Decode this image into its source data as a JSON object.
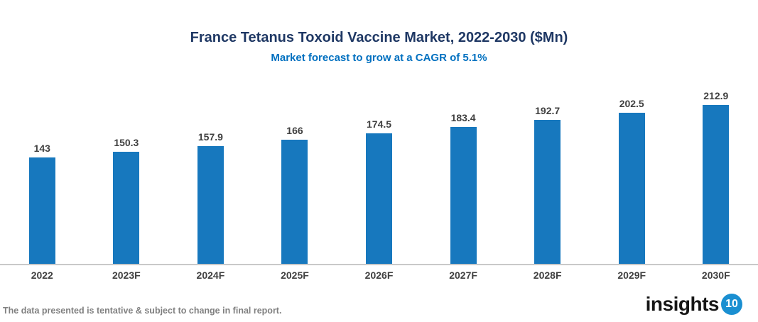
{
  "chart_data": {
    "type": "bar",
    "title": "France Tetanus Toxoid Vaccine Market, 2022-2030 ($Mn)",
    "subtitle": "Market forecast to grow at a CAGR of 5.1%",
    "categories": [
      "2022",
      "2023F",
      "2024F",
      "2025F",
      "2026F",
      "2027F",
      "2028F",
      "2029F",
      "2030F"
    ],
    "values": [
      143,
      150.3,
      157.9,
      166,
      174.5,
      183.4,
      192.7,
      202.5,
      212.9
    ],
    "value_labels": [
      "143",
      "150.3",
      "157.9",
      "166",
      "174.5",
      "183.4",
      "192.7",
      "202.5",
      "212.9"
    ],
    "xlabel": "",
    "ylabel": "",
    "ylim": [
      0,
      230
    ],
    "grid": false,
    "legend": false,
    "y_axis_visible": false,
    "value_labels_position": "above-bar"
  },
  "footer": {
    "disclaimer": "The data presented is tentative & subject to change in final report.",
    "logo_text": "insights",
    "logo_badge": "10"
  },
  "colors": {
    "title": "#1f3864",
    "subtitle": "#0070c0",
    "bar": "#1778be",
    "value_label": "#404040",
    "axis_label": "#404040",
    "axis_line": "#c9c9c9",
    "disclaimer": "#808080",
    "logo_text": "#161616",
    "logo_badge_bg": "#1a8fd1"
  }
}
